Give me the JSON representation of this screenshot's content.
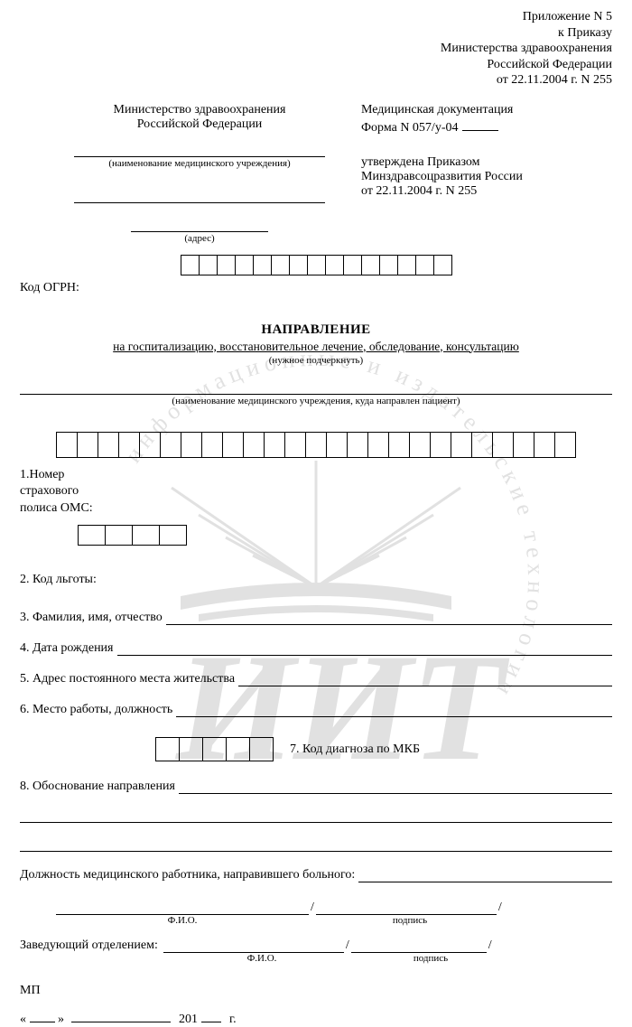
{
  "top": {
    "l1": "Приложение N 5",
    "l2": "к Приказу",
    "l3": "Министерства здравоохранения",
    "l4": "Российской Федерации",
    "l5": "от 22.11.2004 г. N 255"
  },
  "left": {
    "ministry1": "Министерство здравоохранения",
    "ministry2": "Российской Федерации",
    "cap1": "(наименование медицинского учреждения)",
    "cap2": "(адрес)"
  },
  "right": {
    "doc1": "Медицинская документация",
    "formLabel": "Форма N 057/у-04",
    "appr1": "утверждена Приказом",
    "appr2": "Минздравсоцразвития России",
    "appr3": "от 22.11.2004 г. N 255"
  },
  "ogrn": {
    "cells": 15,
    "label": "Код ОГРН:"
  },
  "title": {
    "main": "НАПРАВЛЕНИЕ",
    "sub": "на госпитализацию, восстановительное лечение, обследование, консультацию",
    "hint": "(нужное подчеркнуть)",
    "dest_caption": "(наименование медицинского учреждения, куда направлен пациент)"
  },
  "policy": {
    "cells": 25,
    "series_cells": 4
  },
  "items": {
    "i1a": "1.Номер",
    "i1b": "страхового",
    "i1c": "полиса ОМС:",
    "i2": "2. Код льготы:",
    "i3": "3. Фамилия, имя, отчество",
    "i4": "4. Дата рождения",
    "i5": "5. Адрес постоянного места жительства",
    "i6": "6. Место работы, должность",
    "i7": "7. Код диагноза по МКБ",
    "i8": "8. Обоснование направления"
  },
  "mkb": {
    "cells": 5
  },
  "bottom": {
    "pos": "Должность медицинского работника, направившего больного:",
    "fio": "Ф.И.О.",
    "sign": "подпись",
    "head": "Заведующий отделением:",
    "mp": "МП",
    "year_prefix": "201",
    "year_suffix": "г.",
    "quoteL": "«",
    "quoteR": "»"
  }
}
